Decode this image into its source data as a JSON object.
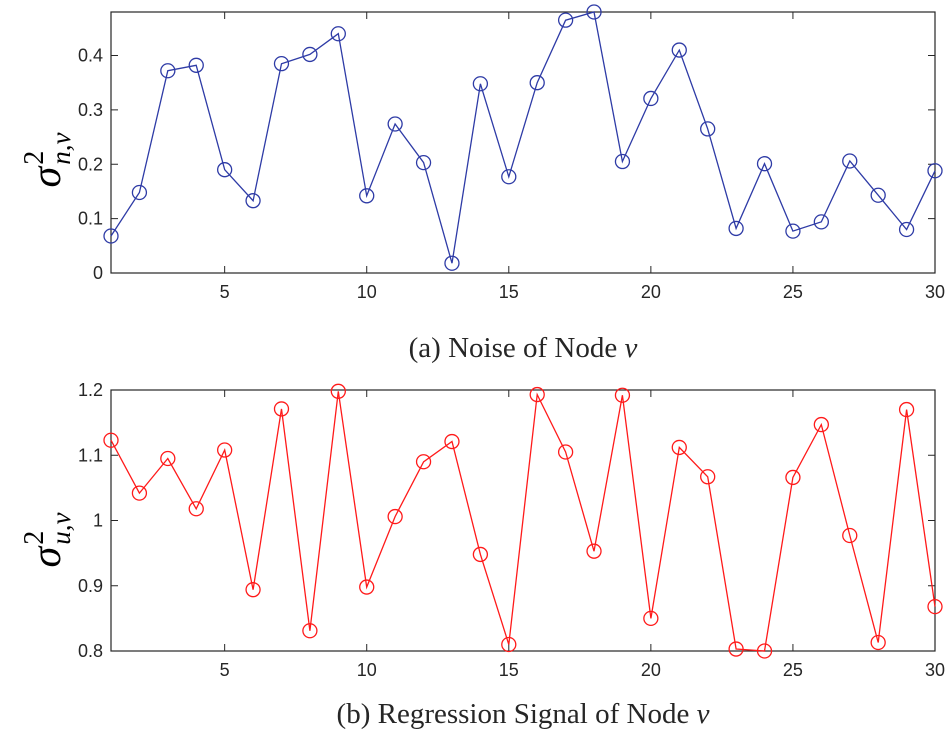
{
  "chart_data": [
    {
      "type": "line",
      "panel": "a",
      "xlabel_prefix": "(a) Noise of Node ",
      "xlabel_var": "v",
      "ylabel": {
        "symbol": "σ",
        "superscript": "2",
        "subscript": "n,v"
      },
      "x": [
        1,
        2,
        3,
        4,
        5,
        6,
        7,
        8,
        9,
        10,
        11,
        12,
        13,
        14,
        15,
        16,
        17,
        18,
        19,
        20,
        21,
        22,
        23,
        24,
        25,
        26,
        27,
        28,
        29,
        30
      ],
      "series": [
        {
          "name": "noise",
          "color": "#2e3ba6",
          "marker": "circle",
          "values": [
            0.068,
            0.148,
            0.372,
            0.382,
            0.19,
            0.133,
            0.385,
            0.402,
            0.44,
            0.142,
            0.274,
            0.203,
            0.018,
            0.348,
            0.177,
            0.35,
            0.465,
            0.48,
            0.205,
            0.321,
            0.41,
            0.265,
            0.082,
            0.201,
            0.077,
            0.094,
            0.206,
            0.143,
            0.08,
            0.188
          ]
        }
      ],
      "xlim": [
        1,
        30
      ],
      "ylim": [
        0,
        0.48
      ],
      "xticks": [
        5,
        10,
        15,
        20,
        25,
        30
      ],
      "xtick_labels": [
        "5",
        "10",
        "15",
        "20",
        "25",
        "30"
      ],
      "yticks": [
        0,
        0.1,
        0.2,
        0.3,
        0.4
      ],
      "ytick_labels": [
        "0",
        "0.1",
        "0.2",
        "0.3",
        "0.4"
      ],
      "grid": false
    },
    {
      "type": "line",
      "panel": "b",
      "xlabel_prefix": "(b) Regression Signal of Node ",
      "xlabel_var": "v",
      "ylabel": {
        "symbol": "σ",
        "superscript": "2",
        "subscript": "u,v"
      },
      "x": [
        1,
        2,
        3,
        4,
        5,
        6,
        7,
        8,
        9,
        10,
        11,
        12,
        13,
        14,
        15,
        16,
        17,
        18,
        19,
        20,
        21,
        22,
        23,
        24,
        25,
        26,
        27,
        28,
        29,
        30
      ],
      "series": [
        {
          "name": "regression signal",
          "color": "#ff1a1a",
          "marker": "circle",
          "values": [
            1.123,
            1.042,
            1.095,
            1.018,
            1.108,
            0.894,
            1.171,
            0.831,
            1.198,
            0.898,
            1.006,
            1.09,
            1.121,
            0.948,
            0.81,
            1.193,
            1.105,
            0.953,
            1.192,
            0.85,
            1.112,
            1.067,
            0.803,
            0.8,
            1.066,
            1.147,
            0.977,
            0.813,
            1.17,
            0.868
          ]
        }
      ],
      "xlim": [
        1,
        30
      ],
      "ylim": [
        0.8,
        1.2
      ],
      "xticks": [
        5,
        10,
        15,
        20,
        25,
        30
      ],
      "xtick_labels": [
        "5",
        "10",
        "15",
        "20",
        "25",
        "30"
      ],
      "yticks": [
        0.8,
        0.9,
        1.0,
        1.1,
        1.2
      ],
      "ytick_labels": [
        "0.8",
        "0.9",
        "1",
        "1.1",
        "1.2"
      ],
      "grid": false
    }
  ]
}
